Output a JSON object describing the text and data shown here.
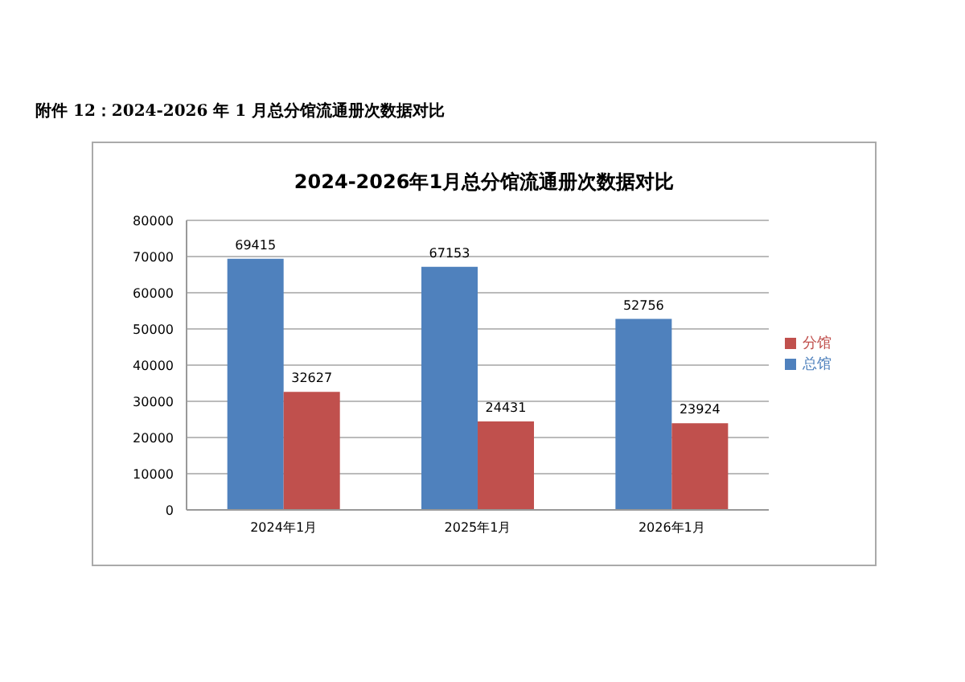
{
  "chart_data": {
    "type": "bar",
    "title": "2024-2026年1月总分馆流通册次数据对比",
    "annotations": [
      "附件 12：2024-2026 年 1 月总分馆流通册次数据对比"
    ],
    "categories": [
      "2024年1月",
      "2025年1月",
      "2026年1月"
    ],
    "series": [
      {
        "name": "总馆",
        "color": "#4f81bd",
        "values": [
          69415,
          67153,
          52756
        ]
      },
      {
        "name": "分馆",
        "color": "#c0504d",
        "values": [
          32627,
          24431,
          23924
        ]
      }
    ],
    "ylim": [
      0,
      80000
    ],
    "yticks": [
      0,
      10000,
      20000,
      30000,
      40000,
      50000,
      60000,
      70000,
      80000
    ],
    "grid": "y",
    "legend": "right",
    "data_labels": true
  }
}
